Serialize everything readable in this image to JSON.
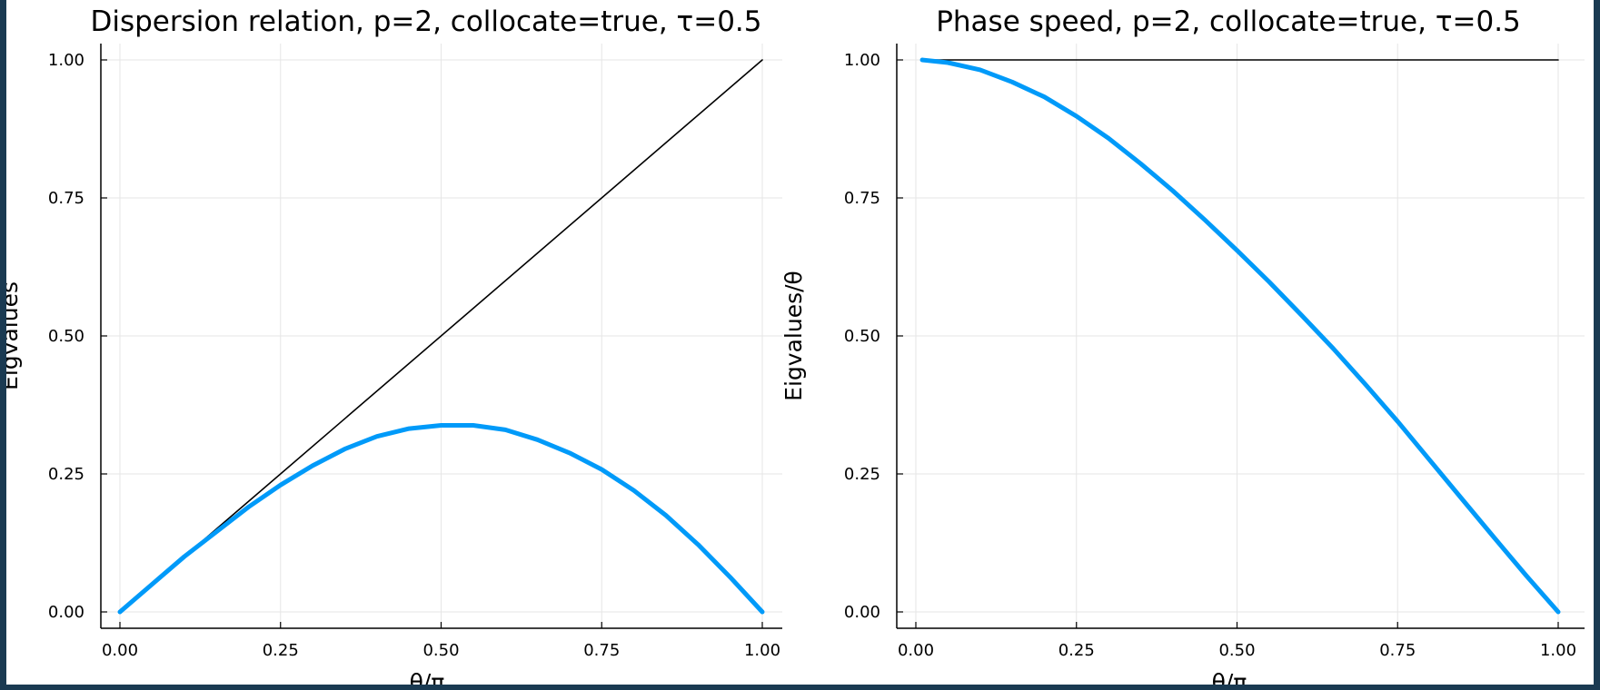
{
  "chart_data": [
    {
      "type": "line",
      "title": "Dispersion relation, p=2, collocate=true, τ=0.5",
      "xlabel": "θ/π",
      "ylabel": "Eigvalues",
      "xlim": [
        0,
        1
      ],
      "ylim": [
        0,
        1
      ],
      "xticks": [
        "0.00",
        "0.25",
        "0.50",
        "0.75",
        "1.00"
      ],
      "yticks": [
        "0.00",
        "0.25",
        "0.50",
        "0.75",
        "1.00"
      ],
      "grid": true,
      "legend": "none",
      "series": [
        {
          "color": "#000000",
          "x": [
            0,
            1
          ],
          "y": [
            0,
            1
          ]
        },
        {
          "color": "#009af9",
          "x": [
            0,
            0.05,
            0.1,
            0.15,
            0.2,
            0.25,
            0.3,
            0.35,
            0.4,
            0.45,
            0.5,
            0.55,
            0.6,
            0.65,
            0.7,
            0.75,
            0.8,
            0.85,
            0.9,
            0.95,
            1.0
          ],
          "y": [
            0,
            0.05,
            0.1,
            0.145,
            0.19,
            0.23,
            0.265,
            0.295,
            0.318,
            0.332,
            0.338,
            0.338,
            0.33,
            0.312,
            0.288,
            0.258,
            0.22,
            0.175,
            0.122,
            0.063,
            0
          ]
        }
      ]
    },
    {
      "type": "line",
      "title": "Phase speed, p=2, collocate=true, τ=0.5",
      "xlabel": "θ/π",
      "ylabel": "Eigvalues/θ",
      "xlim": [
        0,
        1
      ],
      "ylim": [
        0,
        1
      ],
      "xticks": [
        "0.00",
        "0.25",
        "0.50",
        "0.75",
        "1.00"
      ],
      "yticks": [
        "0.00",
        "0.25",
        "0.50",
        "0.75",
        "1.00"
      ],
      "grid": true,
      "legend": "none",
      "series": [
        {
          "color": "#000000",
          "x": [
            0.01,
            1
          ],
          "y": [
            1,
            1
          ]
        },
        {
          "color": "#009af9",
          "x": [
            0.01,
            0.05,
            0.1,
            0.15,
            0.2,
            0.25,
            0.3,
            0.35,
            0.4,
            0.45,
            0.5,
            0.55,
            0.6,
            0.65,
            0.7,
            0.75,
            0.8,
            0.85,
            0.9,
            0.95,
            1.0
          ],
          "y": [
            1.0,
            0.995,
            0.982,
            0.96,
            0.933,
            0.898,
            0.858,
            0.812,
            0.763,
            0.71,
            0.655,
            0.598,
            0.538,
            0.477,
            0.412,
            0.345,
            0.275,
            0.205,
            0.135,
            0.066,
            0
          ]
        }
      ]
    }
  ]
}
